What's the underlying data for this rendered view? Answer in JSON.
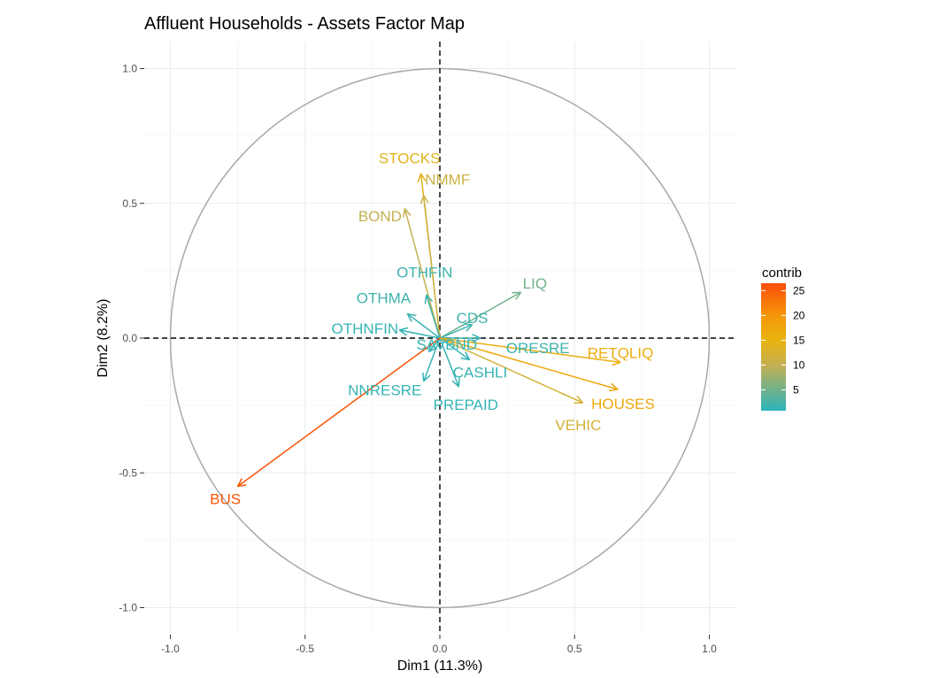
{
  "chart_data": {
    "type": "scatter",
    "subtype": "pca-variable-factor-map",
    "title": "Affluent Households - Assets Factor Map",
    "xlabel": "Dim1 (11.3%)",
    "ylabel": "Dim2 (8.2%)",
    "xlim": [
      -1.0,
      1.0
    ],
    "ylim": [
      -1.0,
      1.0
    ],
    "x_ticks": [
      -1.0,
      -0.5,
      0.0,
      0.5,
      1.0
    ],
    "x_tick_labels": [
      "-1.0",
      "-0.5",
      "0.0",
      "0.5",
      "1.0"
    ],
    "y_ticks": [
      -1.0,
      -0.5,
      0.0,
      0.5,
      1.0
    ],
    "y_tick_labels": [
      "-1.0",
      "-0.5",
      "0.0",
      "0.5",
      "1.0"
    ],
    "grid": true,
    "unit_circle": true,
    "reference_lines": "dashed x=0 and y=0",
    "legend": {
      "title": "contrib",
      "type": "color gradient",
      "placement": "right",
      "range": [
        0.8,
        26.5
      ],
      "tick_values": [
        5,
        10,
        15,
        20,
        25
      ],
      "tick_labels": [
        "5",
        "10",
        "15",
        "20",
        "25"
      ],
      "colors": [
        {
          "value": 0.8,
          "color": "#2ab3bc"
        },
        {
          "value": 10,
          "color": "#c5b052"
        },
        {
          "value": 15,
          "color": "#e8b30f"
        },
        {
          "value": 20,
          "color": "#f5960a"
        },
        {
          "value": 26.5,
          "color": "#fc4e07"
        }
      ]
    },
    "variables": [
      {
        "name": "STOCKS",
        "x": -0.07,
        "y": 0.61,
        "contrib": 14
      },
      {
        "name": "NMMF",
        "x": -0.06,
        "y": 0.53,
        "contrib": 11
      },
      {
        "name": "BOND",
        "x": -0.13,
        "y": 0.48,
        "contrib": 10
      },
      {
        "name": "OTHFIN",
        "x": -0.05,
        "y": 0.16,
        "contrib": 2
      },
      {
        "name": "LIQ",
        "x": 0.3,
        "y": 0.17,
        "contrib": 5
      },
      {
        "name": "OTHMA",
        "x": -0.12,
        "y": 0.09,
        "contrib": 2
      },
      {
        "name": "CDS",
        "x": 0.12,
        "y": 0.05,
        "contrib": 2
      },
      {
        "name": "OTHNFIN",
        "x": -0.15,
        "y": 0.03,
        "contrib": 1.5
      },
      {
        "name": "SAVBND",
        "x": -0.04,
        "y": -0.05,
        "contrib": 1.5
      },
      {
        "name": "ORESRE",
        "x": 0.15,
        "y": 0.0,
        "contrib": 2
      },
      {
        "name": "RETQLIQ",
        "x": 0.67,
        "y": -0.09,
        "contrib": 16
      },
      {
        "name": "HOUSES",
        "x": 0.66,
        "y": -0.19,
        "contrib": 17
      },
      {
        "name": "NNRESRE",
        "x": -0.06,
        "y": -0.16,
        "contrib": 1.5
      },
      {
        "name": "CASHLI",
        "x": 0.11,
        "y": -0.08,
        "contrib": 1.5
      },
      {
        "name": "PREPAID",
        "x": 0.07,
        "y": -0.18,
        "contrib": 1.5
      },
      {
        "name": "VEHIC",
        "x": 0.53,
        "y": -0.24,
        "contrib": 12
      },
      {
        "name": "BUS",
        "x": -0.75,
        "y": -0.55,
        "contrib": 26
      }
    ]
  }
}
